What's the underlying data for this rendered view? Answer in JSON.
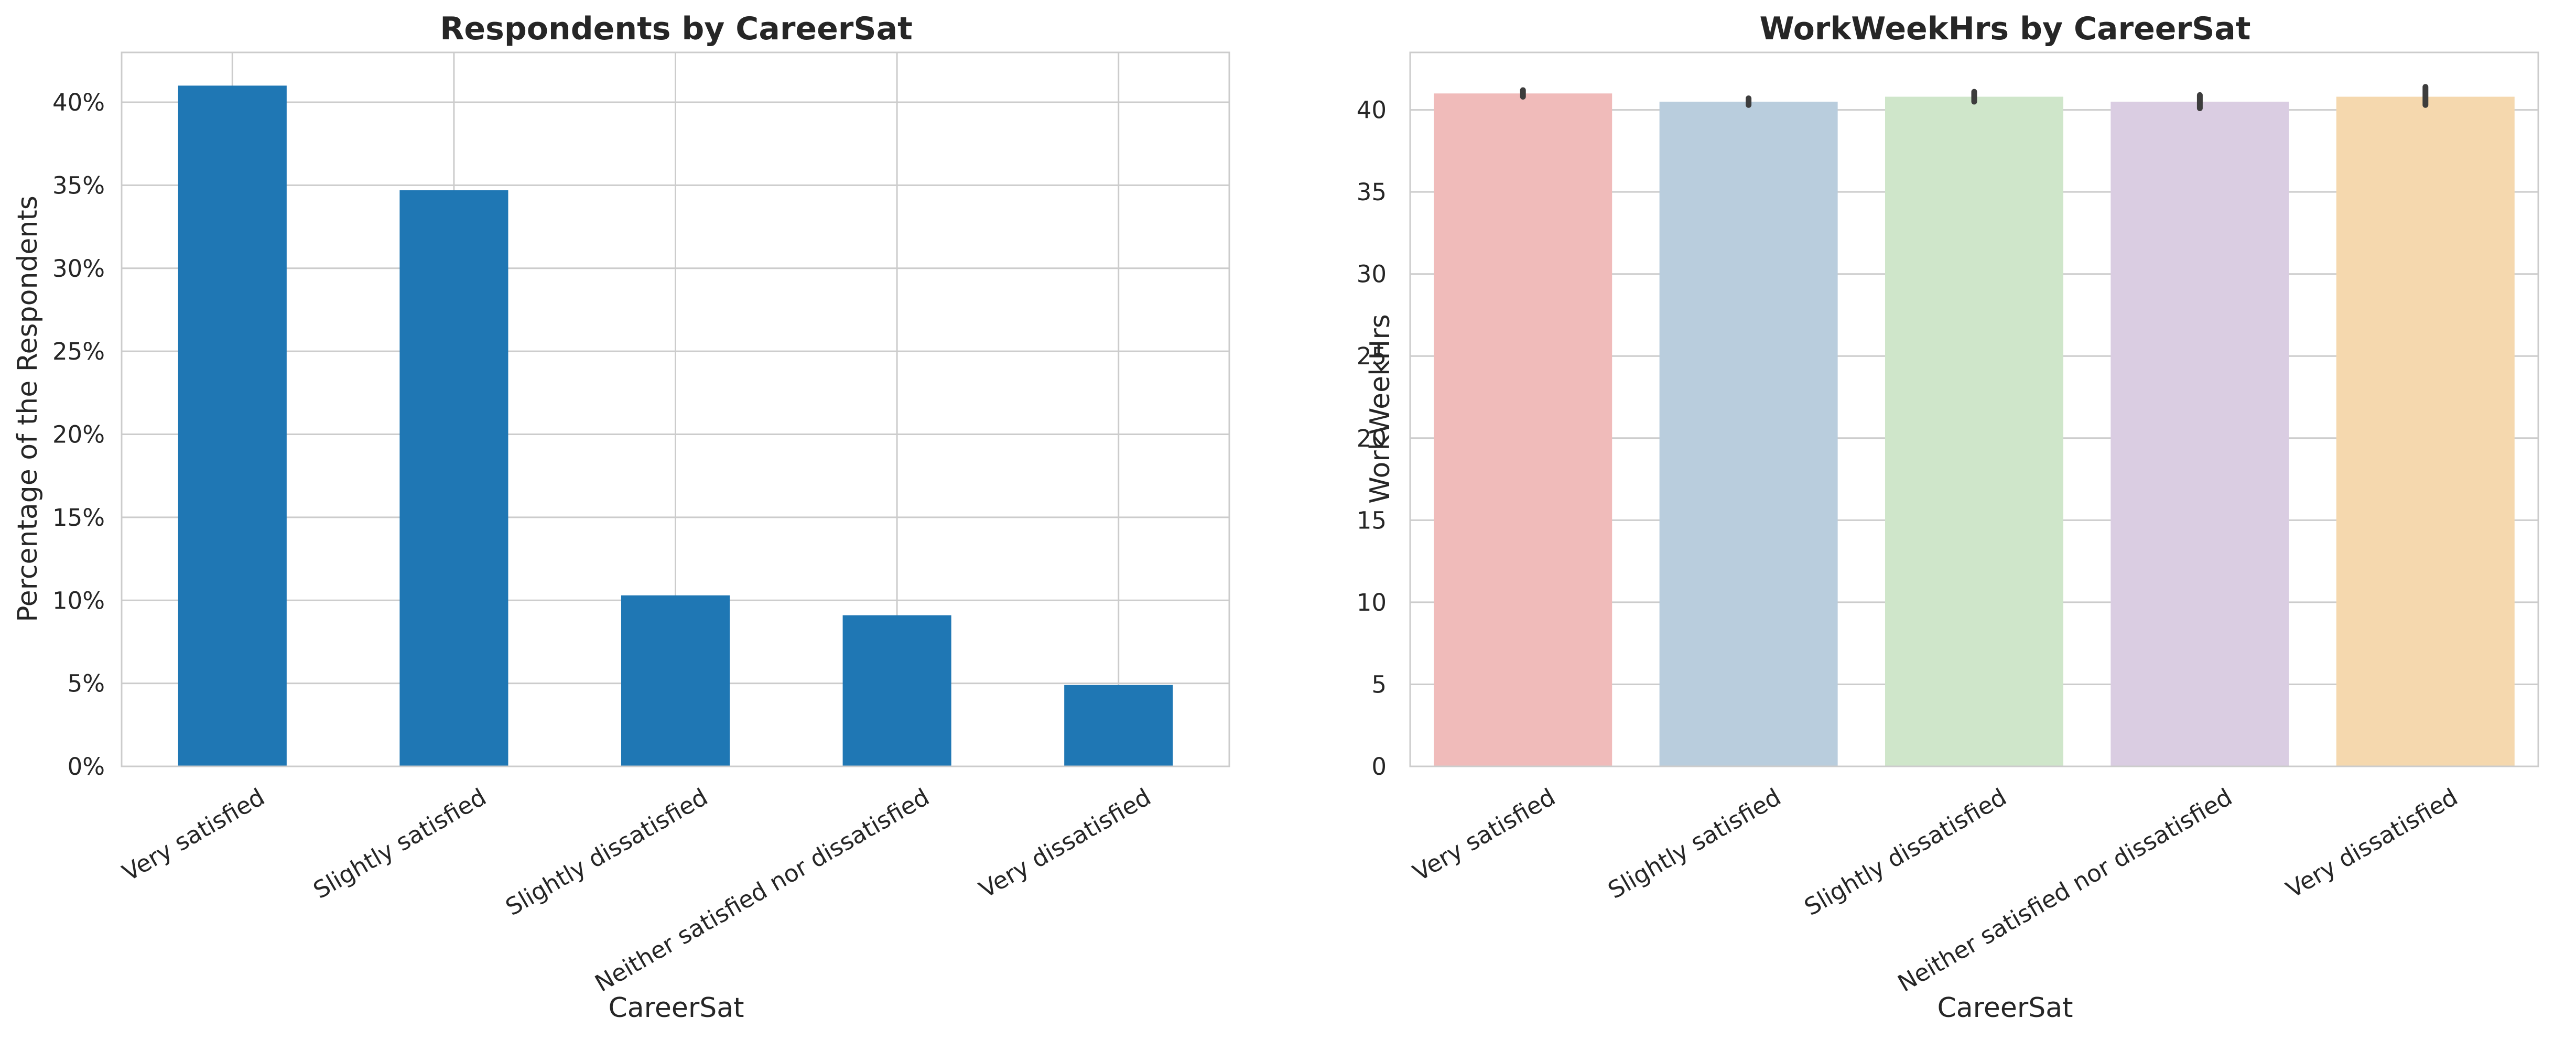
{
  "chart_data": [
    {
      "type": "bar",
      "title": "Respondents by CareerSat",
      "xlabel": "CareerSat",
      "ylabel": "Percentage of the Respondents",
      "categories": [
        "Very satisfied",
        "Slightly satisfied",
        "Slightly dissatisfied",
        "Neither satisfied nor dissatisfied",
        "Very dissatisfied"
      ],
      "values": [
        41.0,
        34.7,
        10.3,
        9.1,
        4.9
      ],
      "unit": "%",
      "ylim": [
        0,
        43
      ],
      "yticks": [
        0,
        5,
        10,
        15,
        20,
        25,
        30,
        35,
        40
      ],
      "ytick_labels": [
        "0%",
        "5%",
        "10%",
        "15%",
        "20%",
        "25%",
        "30%",
        "35%",
        "40%"
      ],
      "bar_color": "#1f77b4",
      "grid": "both",
      "legend": "none"
    },
    {
      "type": "bar",
      "title": "WorkWeekHrs by CareerSat",
      "xlabel": "CareerSat",
      "ylabel": "WorkWeekHrs",
      "categories": [
        "Very satisfied",
        "Slightly satisfied",
        "Slightly dissatisfied",
        "Neither satisfied nor dissatisfied",
        "Very dissatisfied"
      ],
      "values": [
        41.0,
        40.5,
        40.8,
        40.5,
        40.8
      ],
      "error_bars": [
        [
          40.8,
          41.2
        ],
        [
          40.3,
          40.7
        ],
        [
          40.5,
          41.1
        ],
        [
          40.1,
          40.9
        ],
        [
          40.3,
          41.4
        ]
      ],
      "ylim": [
        0,
        43.5
      ],
      "yticks": [
        0,
        5,
        10,
        15,
        20,
        25,
        30,
        35,
        40
      ],
      "ytick_labels": [
        "0",
        "5",
        "10",
        "15",
        "20",
        "25",
        "30",
        "35",
        "40"
      ],
      "colors": [
        "#f0bbba",
        "#b9cddd",
        "#cfe6ca",
        "#dacde2",
        "#f5d8ae"
      ],
      "grid": "y",
      "legend": "none"
    }
  ]
}
